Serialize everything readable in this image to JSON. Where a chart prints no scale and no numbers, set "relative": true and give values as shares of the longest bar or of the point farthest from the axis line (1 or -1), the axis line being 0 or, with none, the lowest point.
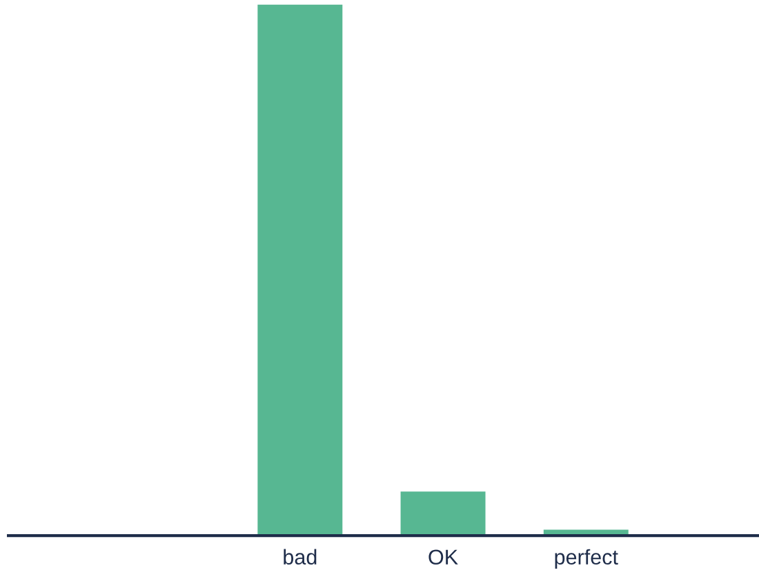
{
  "chart_data": {
    "type": "bar",
    "relative": true,
    "categories": [
      "bad",
      "OK",
      "perfect"
    ],
    "values": [
      1,
      0.084,
      0.012
    ],
    "color": "#57b792",
    "grid": false,
    "legend": false
  }
}
